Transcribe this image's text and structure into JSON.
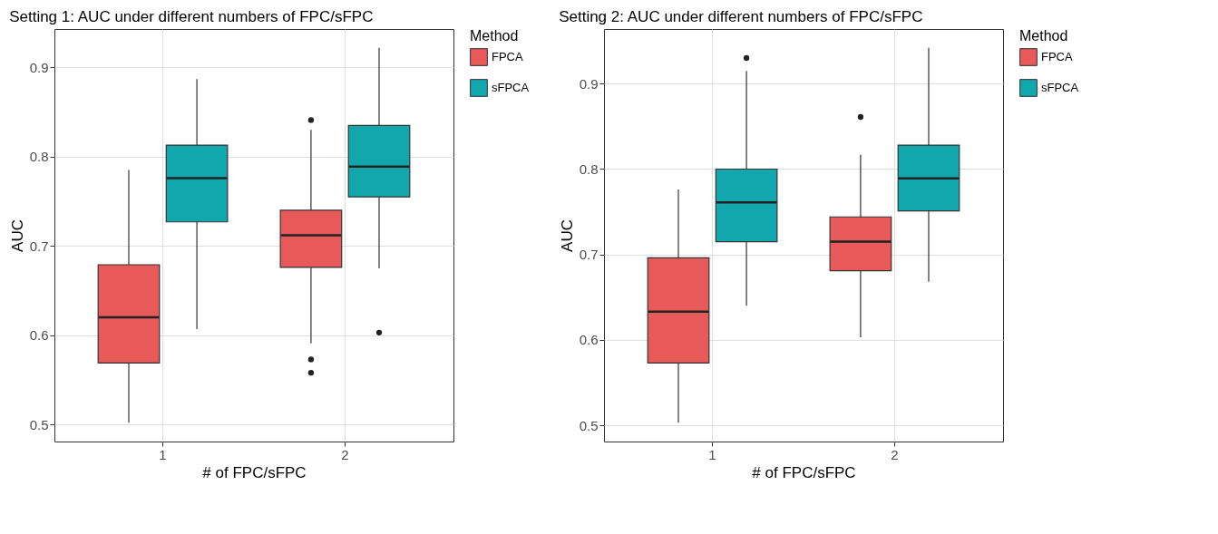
{
  "chart_data": [
    {
      "type": "box",
      "title": "Setting 1: AUC under different numbers of FPC/sFPC",
      "xlabel": "# of FPC/sFPC",
      "ylabel": "AUC",
      "legend_title": "Method",
      "legend": "right",
      "grid": true,
      "categories": [
        "1",
        "2"
      ],
      "ylim": [
        0.481,
        0.943
      ],
      "yticks": [
        0.5,
        0.6,
        0.7,
        0.8,
        0.9
      ],
      "series": [
        {
          "name": "FPCA",
          "color": "#e8595a",
          "boxes": [
            {
              "low": 0.502,
              "q1": 0.569,
              "median": 0.62,
              "q3": 0.679,
              "high": 0.785
            },
            {
              "low": 0.591,
              "q1": 0.676,
              "median": 0.712,
              "q3": 0.74,
              "high": 0.83,
              "outliers": [
                0.841,
                0.573,
                0.558
              ]
            }
          ]
        },
        {
          "name": "sFPCA",
          "color": "#11a7ad",
          "boxes": [
            {
              "low": 0.607,
              "q1": 0.727,
              "median": 0.776,
              "q3": 0.813,
              "high": 0.887
            },
            {
              "low": 0.675,
              "q1": 0.755,
              "median": 0.789,
              "q3": 0.835,
              "high": 0.922,
              "outliers": [
                0.603
              ]
            }
          ]
        }
      ]
    },
    {
      "type": "box",
      "title": "Setting 2: AUC under different numbers of FPC/sFPC",
      "xlabel": "# of FPC/sFPC",
      "ylabel": "AUC",
      "legend_title": "Method",
      "legend": "right",
      "grid": true,
      "categories": [
        "1",
        "2"
      ],
      "ylim": [
        0.481,
        0.964
      ],
      "yticks": [
        0.5,
        0.6,
        0.7,
        0.8,
        0.9
      ],
      "series": [
        {
          "name": "FPCA",
          "color": "#e8595a",
          "boxes": [
            {
              "low": 0.503,
              "q1": 0.573,
              "median": 0.633,
              "q3": 0.696,
              "high": 0.776
            },
            {
              "low": 0.603,
              "q1": 0.681,
              "median": 0.715,
              "q3": 0.744,
              "high": 0.817,
              "outliers": [
                0.861
              ]
            }
          ]
        },
        {
          "name": "sFPCA",
          "color": "#11a7ad",
          "boxes": [
            {
              "low": 0.64,
              "q1": 0.715,
              "median": 0.761,
              "q3": 0.8,
              "high": 0.915,
              "outliers": [
                0.93
              ]
            },
            {
              "low": 0.668,
              "q1": 0.751,
              "median": 0.789,
              "q3": 0.828,
              "high": 0.942
            }
          ]
        }
      ]
    }
  ]
}
